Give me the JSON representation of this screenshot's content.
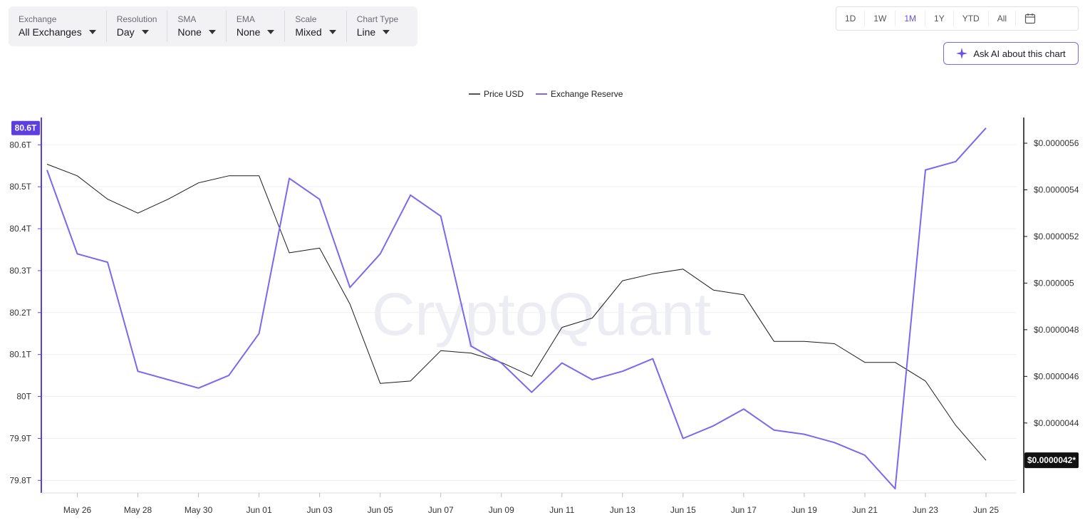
{
  "toolbar": {
    "groups": [
      {
        "label": "Exchange",
        "value": "All Exchanges"
      },
      {
        "label": "Resolution",
        "value": "Day"
      },
      {
        "label": "SMA",
        "value": "None"
      },
      {
        "label": "EMA",
        "value": "None"
      },
      {
        "label": "Scale",
        "value": "Mixed"
      },
      {
        "label": "Chart Type",
        "value": "Line"
      }
    ]
  },
  "ranges": {
    "items": [
      "1D",
      "1W",
      "1M",
      "1Y",
      "YTD",
      "All"
    ],
    "active": "1M",
    "calendar_icon": "calendar-icon"
  },
  "ask_ai": {
    "label": "Ask AI about this chart",
    "icon": "sparkle-icon"
  },
  "watermark": "CryptoQuant",
  "colors": {
    "price": "#1a1a1a",
    "reserve": "#7b68ee",
    "accent": "#5b3fe0"
  },
  "chart_data": {
    "type": "line",
    "title": "",
    "legend": {
      "placement": "top-center",
      "entries": [
        "Price USD",
        "Exchange Reserve"
      ]
    },
    "x": [
      "May 25",
      "May 26",
      "May 27",
      "May 28",
      "May 29",
      "May 30",
      "May 31",
      "Jun 01",
      "Jun 02",
      "Jun 03",
      "Jun 04",
      "Jun 05",
      "Jun 06",
      "Jun 07",
      "Jun 08",
      "Jun 09",
      "Jun 10",
      "Jun 11",
      "Jun 12",
      "Jun 13",
      "Jun 14",
      "Jun 15",
      "Jun 16",
      "Jun 17",
      "Jun 18",
      "Jun 19",
      "Jun 20",
      "Jun 21",
      "Jun 22",
      "Jun 23",
      "Jun 24",
      "Jun 25"
    ],
    "x_tick_labels": [
      "May 26",
      "May 28",
      "May 30",
      "Jun 01",
      "Jun 03",
      "Jun 05",
      "Jun 07",
      "Jun 09",
      "Jun 11",
      "Jun 13",
      "Jun 15",
      "Jun 17",
      "Jun 19",
      "Jun 21",
      "Jun 23",
      "Jun 25"
    ],
    "left_axis": {
      "ticks": [
        80.6,
        80.5,
        80.4,
        80.3,
        80.2,
        80.1,
        80.0,
        79.9,
        79.8
      ],
      "tick_labels": [
        "80.6T",
        "80.5T",
        "80.4T",
        "80.3T",
        "80.2T",
        "80.1T",
        "80T",
        "79.9T",
        "79.8T"
      ],
      "range": [
        79.77,
        80.665
      ],
      "current_label": "80.6T"
    },
    "right_axis": {
      "ticks": [
        5.6e-06,
        5.4e-06,
        5.2e-06,
        5e-06,
        4.8e-06,
        4.6e-06,
        4.4e-06
      ],
      "tick_labels": [
        "$0.0000056",
        "$0.0000054",
        "$0.0000052",
        "$0.000005",
        "$0.0000048",
        "$0.0000046",
        "$0.0000044"
      ],
      "range": [
        4.1e-06,
        5.71e-06
      ],
      "current_label": "$0.0000042*"
    },
    "grid": true,
    "series": [
      {
        "name": "Price USD",
        "axis": "right",
        "values": [
          5.51e-06,
          5.46e-06,
          5.36e-06,
          5.3e-06,
          5.36e-06,
          5.43e-06,
          5.46e-06,
          5.46e-06,
          5.13e-06,
          5.15e-06,
          4.91e-06,
          4.57e-06,
          4.58e-06,
          4.71e-06,
          4.7e-06,
          4.66e-06,
          4.6e-06,
          4.81e-06,
          4.85e-06,
          5.01e-06,
          5.04e-06,
          5.06e-06,
          4.97e-06,
          4.95e-06,
          4.75e-06,
          4.75e-06,
          4.74e-06,
          4.66e-06,
          4.66e-06,
          4.58e-06,
          4.39e-06,
          4.24e-06
        ]
      },
      {
        "name": "Exchange Reserve",
        "axis": "left",
        "values": [
          80.54,
          80.34,
          80.32,
          80.06,
          80.04,
          80.02,
          80.05,
          80.15,
          80.52,
          80.47,
          80.26,
          80.34,
          80.48,
          80.43,
          80.12,
          80.08,
          80.01,
          80.08,
          80.04,
          80.06,
          80.09,
          79.9,
          79.93,
          79.97,
          79.92,
          79.91,
          79.89,
          79.86,
          79.78,
          80.54,
          80.56,
          80.64
        ]
      }
    ]
  }
}
